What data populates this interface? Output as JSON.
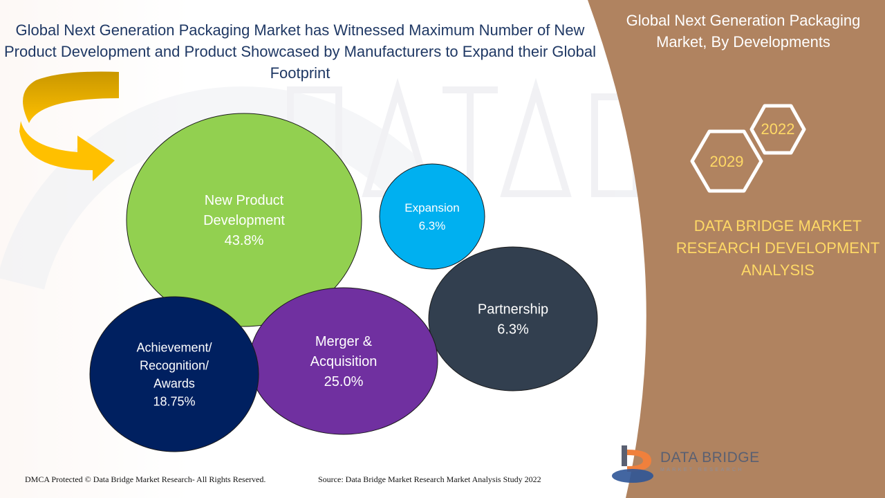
{
  "header": {
    "title": "Global Next Generation Packaging Market has Witnessed Maximum Number of New Product Development and Product Showcased by Manufacturers to Expand their Global Footprint"
  },
  "side_panel": {
    "title": "Global Next Generation Packaging Market, By Developments",
    "years": [
      "2022",
      "2029"
    ],
    "analysis_label": "DATA BRIDGE MARKET RESEARCH DEVELOPMENT ANALYSIS"
  },
  "chart_data": {
    "type": "bubble",
    "unit": "%",
    "series": [
      {
        "label": [
          "New Product",
          "Development"
        ],
        "value": 43.8,
        "value_text": "43.8%",
        "color": "#92d050"
      },
      {
        "label": [
          "Expansion"
        ],
        "value": 6.3,
        "value_text": "6.3%",
        "color": "#00b0f0"
      },
      {
        "label": [
          "Partnership"
        ],
        "value": 6.3,
        "value_text": "6.3%",
        "color": "#323f4f"
      },
      {
        "label": [
          "Merger &",
          "Acquisition"
        ],
        "value": 25.0,
        "value_text": "25.0%",
        "color": "#7030a0"
      },
      {
        "label": [
          "Achievement/",
          "Recognition/",
          "Awards"
        ],
        "value": 18.75,
        "value_text": "18.75%",
        "color": "#002060"
      }
    ]
  },
  "footer": {
    "copyright": "DMCA Protected © Data Bridge Market Research- All Rights Reserved.",
    "source": "Source: Data Bridge Market Research Market Analysis Study 2022"
  },
  "brand": {
    "logo_name": "DATA BRIDGE",
    "logo_sub": "MARKET RESEARCH"
  },
  "colors": {
    "side_panel": "#b08360",
    "title": "#1f3864",
    "arrow": "#f2b600",
    "analysis_text": "#ffd966",
    "hexagon_stroke": "#ffffff"
  }
}
